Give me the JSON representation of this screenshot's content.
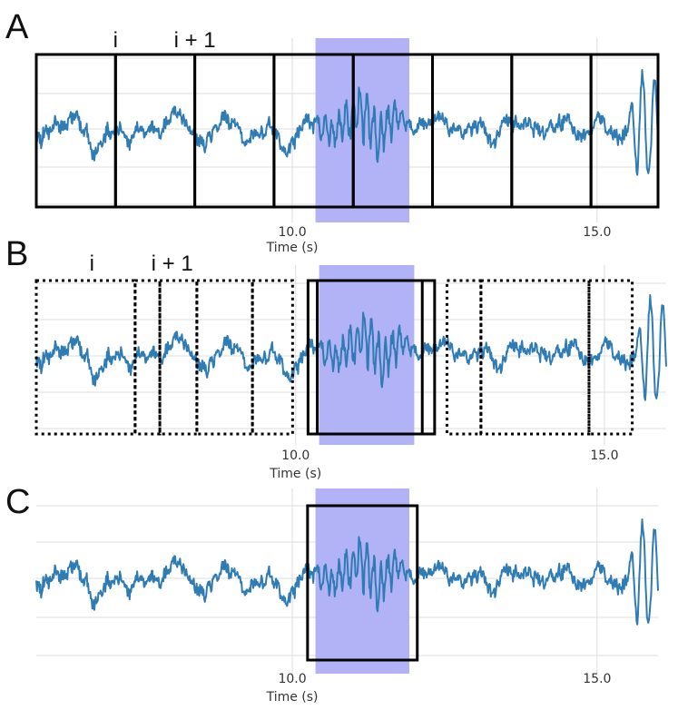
{
  "colors": {
    "signal": "#2f7bb4",
    "highlight": "#aeaef5",
    "box": "#000000"
  },
  "chart_data": [
    {
      "type": "line",
      "panel": "A",
      "xlabel": "Time (s)",
      "xticks": [
        10.0,
        15.0
      ],
      "xtick_labels": [
        "10.0",
        "15.0"
      ],
      "xlim": [
        5.8,
        16.0
      ],
      "highlight_range": [
        10.38,
        11.92
      ],
      "window_style": "solid-contiguous",
      "windows": [
        [
          5.8,
          7.1
        ],
        [
          7.1,
          8.4
        ],
        [
          8.4,
          9.7
        ],
        [
          9.7,
          11.0
        ],
        [
          11.0,
          12.3
        ],
        [
          12.3,
          13.6
        ],
        [
          13.6,
          14.9
        ],
        [
          14.9,
          16.0
        ]
      ],
      "window_labels": [
        {
          "text": "i",
          "at": 7.1
        },
        {
          "text": "i + 1",
          "at": 8.4
        }
      ]
    },
    {
      "type": "line",
      "panel": "B",
      "xlabel": "Time (s)",
      "xticks": [
        10.0,
        15.0
      ],
      "xtick_labels": [
        "10.0",
        "15.0"
      ],
      "xlim": [
        5.8,
        16.0
      ],
      "highlight_range": [
        10.38,
        11.92
      ],
      "window_style": "dotted-overlapping",
      "dotted_windows": [
        [
          5.8,
          7.4
        ],
        [
          7.4,
          7.8
        ],
        [
          7.8,
          8.4
        ],
        [
          8.4,
          9.3
        ],
        [
          9.3,
          9.95
        ],
        [
          12.45,
          13.0
        ],
        [
          13.0,
          14.75
        ],
        [
          14.75,
          15.45
        ]
      ],
      "solid_windows": [
        [
          10.2,
          12.05
        ],
        [
          10.35,
          12.25
        ]
      ],
      "window_labels": [
        {
          "text": "i",
          "at": 6.7
        },
        {
          "text": "i + 1",
          "at": 8.0
        }
      ]
    },
    {
      "type": "line",
      "panel": "C",
      "xlabel": "Time (s)",
      "xticks": [
        10.0,
        15.0
      ],
      "xtick_labels": [
        "10.0",
        "15.0"
      ],
      "xlim": [
        5.8,
        16.0
      ],
      "highlight_range": [
        10.38,
        11.92
      ],
      "window_style": "single",
      "solid_windows": [
        [
          10.25,
          12.05
        ]
      ]
    }
  ]
}
